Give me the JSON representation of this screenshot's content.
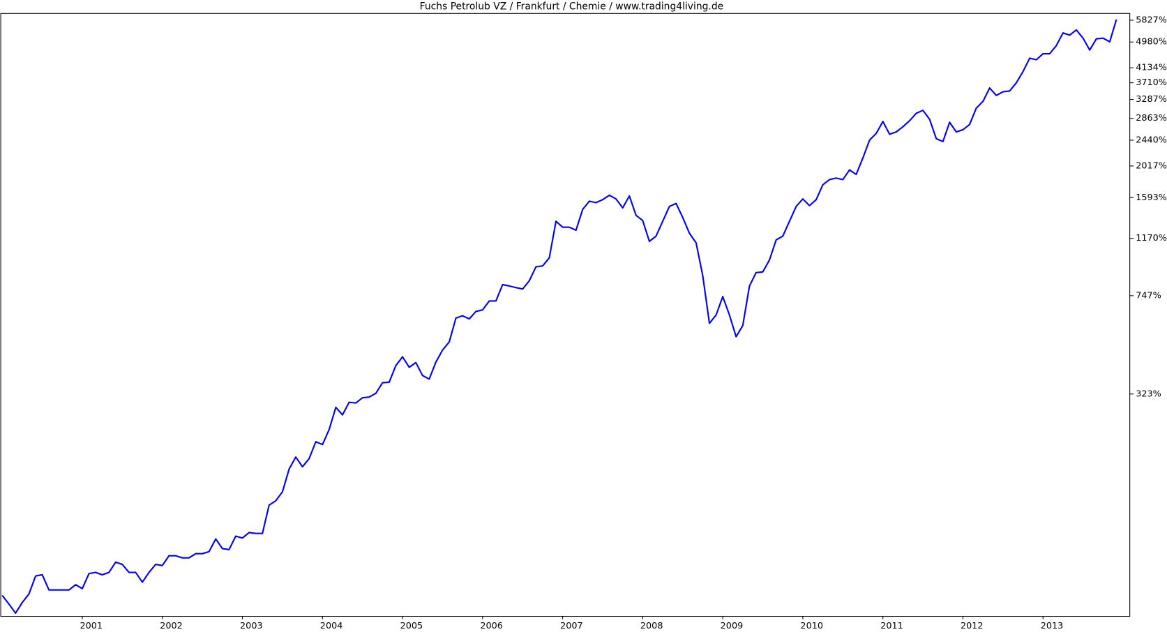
{
  "chart_data": {
    "type": "line",
    "title": "Fuchs Petrolub VZ / Frankfurt / Chemie / www.trading4living.de",
    "log_scale": true,
    "color": "#0000ff",
    "ylim": [
      -12,
      6116
    ],
    "yticks": [
      {
        "value": 5827,
        "label": "5827%"
      },
      {
        "value": 4980,
        "label": "4980%"
      },
      {
        "value": 4134,
        "label": "4134%"
      },
      {
        "value": 3710,
        "label": "3710%"
      },
      {
        "value": 3287,
        "label": "3287%"
      },
      {
        "value": 2863,
        "label": "2863%"
      },
      {
        "value": 2440,
        "label": "2440%"
      },
      {
        "value": 2017,
        "label": "2017%"
      },
      {
        "value": 1593,
        "label": "1593%"
      },
      {
        "value": 1170,
        "label": "1170%"
      },
      {
        "value": 747,
        "label": "747%"
      },
      {
        "value": 323,
        "label": "323%"
      }
    ],
    "categories": [
      null,
      null,
      null,
      null,
      null,
      null,
      null,
      null,
      null,
      null,
      null,
      null,
      "2001",
      null,
      null,
      null,
      null,
      null,
      null,
      null,
      null,
      null,
      null,
      null,
      "2002",
      null,
      null,
      null,
      null,
      null,
      null,
      null,
      null,
      null,
      null,
      null,
      "2003",
      null,
      null,
      null,
      null,
      null,
      null,
      null,
      null,
      null,
      null,
      null,
      "2004",
      null,
      null,
      null,
      null,
      null,
      null,
      null,
      null,
      null,
      null,
      null,
      "2005",
      null,
      null,
      null,
      null,
      null,
      null,
      null,
      null,
      null,
      null,
      null,
      "2006",
      null,
      null,
      null,
      null,
      null,
      null,
      null,
      null,
      null,
      null,
      null,
      "2007",
      null,
      null,
      null,
      null,
      null,
      null,
      null,
      null,
      null,
      null,
      null,
      "2008",
      null,
      null,
      null,
      null,
      null,
      null,
      null,
      null,
      null,
      null,
      null,
      "2009",
      null,
      null,
      null,
      null,
      null,
      null,
      null,
      null,
      null,
      null,
      null,
      "2010",
      null,
      null,
      null,
      null,
      null,
      null,
      null,
      null,
      null,
      null,
      null,
      "2011",
      null,
      null,
      null,
      null,
      null,
      null,
      null,
      null,
      null,
      null,
      null,
      "2012",
      null,
      null,
      null,
      null,
      null,
      null,
      null,
      null,
      null,
      null,
      null,
      "2013",
      null,
      null,
      null,
      null,
      null,
      null,
      null,
      null,
      null,
      null,
      null
    ],
    "values": [
      2,
      -4,
      -10,
      -3,
      3,
      17,
      18,
      6,
      6,
      6,
      6,
      10,
      7,
      19,
      20,
      18,
      20,
      29,
      27,
      20,
      20,
      12,
      20,
      27,
      26,
      35,
      35,
      33,
      33,
      37,
      37,
      39,
      52,
      42,
      41,
      55,
      53,
      59,
      58,
      58,
      93,
      99,
      112,
      149,
      171,
      153,
      168,
      202,
      196,
      229,
      285,
      265,
      299,
      297,
      312,
      314,
      325,
      358,
      360,
      417,
      450,
      411,
      428,
      382,
      370,
      430,
      477,
      511,
      623,
      635,
      619,
      658,
      666,
      716,
      716,
      816,
      807,
      797,
      788,
      841,
      939,
      945,
      1007,
      1333,
      1274,
      1274,
      1245,
      1458,
      1551,
      1534,
      1569,
      1622,
      1577,
      1475,
      1613,
      1394,
      1340,
      1143,
      1190,
      1333,
      1491,
      1525,
      1371,
      1217,
      1130,
      876,
      597,
      639,
      742,
      639,
      534,
      586,
      807,
      897,
      902,
      990,
      1156,
      1190,
      1333,
      1491,
      1577,
      1500,
      1569,
      1754,
      1823,
      1844,
      1823,
      1959,
      1895,
      2140,
      2441,
      2564,
      2798,
      2550,
      2592,
      2693,
      2814,
      2971,
      3036,
      2844,
      2468,
      2415,
      2783,
      2592,
      2635,
      2738,
      3086,
      3240,
      3572,
      3384,
      3476,
      3495,
      3709,
      4022,
      4431,
      4383,
      4576,
      4576,
      4855,
      5318,
      5234,
      5434,
      5122,
      4701,
      5095,
      5122,
      4987,
      5856
    ]
  }
}
